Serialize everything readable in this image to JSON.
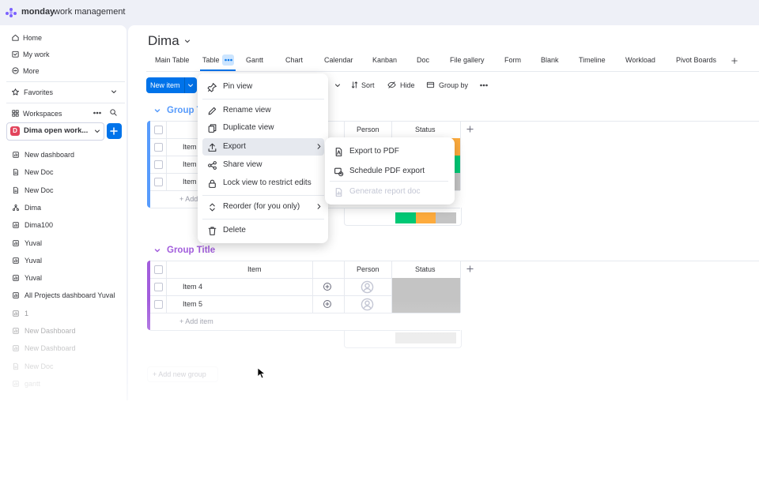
{
  "brand": {
    "name": "monday",
    "product": "work management"
  },
  "sidebar": {
    "nav": [
      "Home",
      "My work",
      "More"
    ],
    "favorites": "Favorites",
    "workspaces": "Workspaces",
    "workspace": {
      "badge": "D",
      "name": "Dima open work..."
    },
    "items": [
      "New dashboard",
      "New Doc",
      "New Doc",
      "Dima",
      "Dima100",
      "Yuval",
      "Yuval",
      "Yuval",
      "All Projects dashboard Yuval",
      "1",
      "New Dashboard",
      "New Dashboard",
      "New Doc",
      "gantt"
    ]
  },
  "board": {
    "title": "Dima",
    "tabs": [
      "Main Table",
      "Table",
      "Gantt",
      "Chart",
      "Calendar",
      "Kanban",
      "Doc",
      "File gallery",
      "Form",
      "Blank",
      "Timeline",
      "Workload",
      "Pivot Boards"
    ],
    "toolbar": {
      "new_item": "New item",
      "sort": "Sort",
      "hide": "Hide",
      "group_by": "Group by"
    }
  },
  "groups": [
    {
      "title": "Group T",
      "columns": {
        "person": "Person",
        "status": "Status"
      },
      "rows": [
        "Item",
        "Item",
        "Item"
      ],
      "add_item": "+ Add"
    },
    {
      "title": "Group Title",
      "columns": {
        "item": "Item",
        "person": "Person",
        "status": "Status"
      },
      "rows": [
        "Item 4",
        "Item 5"
      ],
      "add_item": "+ Add item"
    }
  ],
  "add_group": "+ Add new group",
  "context_menu": {
    "items": [
      "Pin view",
      "Rename view",
      "Duplicate view",
      "Export",
      "Share view",
      "Lock view to restrict edits",
      "Reorder (for you only)",
      "Delete"
    ]
  },
  "submenu": {
    "items": [
      "Export to PDF",
      "Schedule PDF export",
      "Generate report doc"
    ]
  }
}
